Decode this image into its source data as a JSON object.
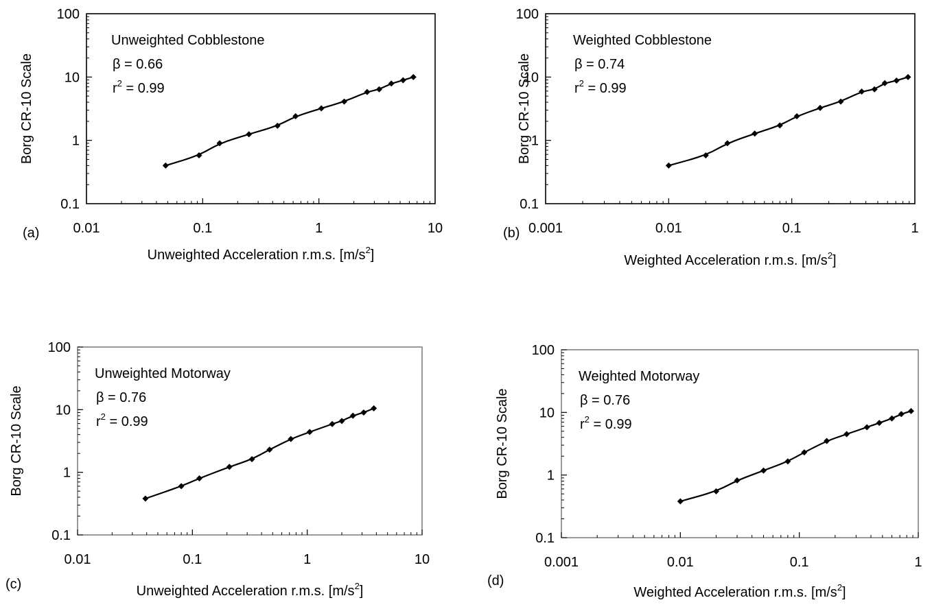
{
  "chart_data": [
    {
      "type": "scatter",
      "panel_label": "(a)",
      "title": "Unweighted Cobblestone",
      "annotations": [
        "β = 0.66",
        "r",
        "2",
        " = 0.99"
      ],
      "xlabel": "Unweighted Acceleration r.m.s. [m/s",
      "xlabel_sup": "2",
      "xlabel_end": "]",
      "ylabel": "Borg CR-10 Scale",
      "x_scale": "log",
      "y_scale": "log",
      "xlim": [
        0.01,
        10
      ],
      "ylim": [
        0.1,
        100
      ],
      "x_ticks": [
        "0.01",
        "0.1",
        "1",
        "10"
      ],
      "y_ticks": [
        "0.1",
        "1",
        "10",
        "100"
      ],
      "frame": "black",
      "grid": false,
      "legend": "none",
      "series": [
        {
          "x": [
            0.048,
            0.093,
            0.14,
            0.25,
            0.44,
            0.63,
            1.05,
            1.65,
            2.6,
            3.3,
            4.2,
            5.3,
            6.5
          ],
          "y": [
            0.4,
            0.58,
            0.9,
            1.25,
            1.7,
            2.4,
            3.2,
            4.1,
            5.8,
            6.4,
            7.9,
            8.9,
            10.0
          ],
          "fit_beta": 0.66
        }
      ]
    },
    {
      "type": "scatter",
      "panel_label": "(b)",
      "title": "Weighted Cobblestone",
      "annotations": [
        "β = 0.74",
        "r",
        "2",
        " = 0.99"
      ],
      "xlabel": "Weighted Acceleration r.m.s. [m/s",
      "xlabel_sup": "2",
      "xlabel_end": "]",
      "ylabel": "Borg CR-10 Scale",
      "x_scale": "log",
      "y_scale": "log",
      "xlim": [
        0.001,
        1
      ],
      "ylim": [
        0.1,
        100
      ],
      "x_ticks": [
        "0.001",
        "0.01",
        "0.1",
        "1"
      ],
      "y_ticks": [
        "0.1",
        "1",
        "10",
        "100"
      ],
      "frame": "black",
      "grid": false,
      "legend": "none",
      "series": [
        {
          "x": [
            0.01,
            0.02,
            0.03,
            0.05,
            0.08,
            0.11,
            0.17,
            0.25,
            0.37,
            0.47,
            0.57,
            0.71,
            0.88
          ],
          "y": [
            0.4,
            0.58,
            0.9,
            1.28,
            1.72,
            2.4,
            3.25,
            4.1,
            5.9,
            6.4,
            8.0,
            8.8,
            10.0
          ],
          "fit_beta": 0.74
        }
      ]
    },
    {
      "type": "scatter",
      "panel_label": "(c)",
      "title": "Unweighted Motorway",
      "annotations": [
        "β = 0.76",
        "r",
        "2",
        " = 0.99"
      ],
      "xlabel": "Unweighted Acceleration r.m.s. [m/s",
      "xlabel_sup": "2",
      "xlabel_end": "]",
      "ylabel": "Borg CR-10 Scale",
      "x_scale": "log",
      "y_scale": "log",
      "xlim": [
        0.01,
        10
      ],
      "ylim": [
        0.1,
        100
      ],
      "x_ticks": [
        "0.01",
        "0.1",
        "1",
        "10"
      ],
      "y_ticks": [
        "0.1",
        "1",
        "10",
        "100"
      ],
      "frame": "gray",
      "grid": false,
      "legend": "none",
      "series": [
        {
          "x": [
            0.039,
            0.08,
            0.115,
            0.21,
            0.33,
            0.47,
            0.72,
            1.05,
            1.65,
            2.0,
            2.5,
            3.1,
            3.8
          ],
          "y": [
            0.38,
            0.6,
            0.8,
            1.22,
            1.62,
            2.3,
            3.4,
            4.4,
            5.9,
            6.6,
            8.0,
            9.0,
            10.5
          ],
          "fit_beta": 0.76
        }
      ]
    },
    {
      "type": "scatter",
      "panel_label": "(d)",
      "title": "Weighted Motorway",
      "annotations": [
        "β = 0.76",
        "r",
        "2",
        " = 0.99"
      ],
      "xlabel": "Weighted Acceleration r.m.s. [m/s",
      "xlabel_sup": "2",
      "xlabel_end": "]",
      "ylabel": "Borg CR-10 Scale",
      "x_scale": "log",
      "y_scale": "log",
      "xlim": [
        0.001,
        1
      ],
      "ylim": [
        0.1,
        100
      ],
      "x_ticks": [
        "0.001",
        "0.01",
        "0.1",
        "1"
      ],
      "y_ticks": [
        "0.1",
        "1",
        "10",
        "100"
      ],
      "frame": "gray",
      "grid": false,
      "legend": "none",
      "series": [
        {
          "x": [
            0.01,
            0.02,
            0.03,
            0.05,
            0.08,
            0.11,
            0.17,
            0.25,
            0.37,
            0.47,
            0.6,
            0.72,
            0.87
          ],
          "y": [
            0.38,
            0.55,
            0.82,
            1.18,
            1.65,
            2.3,
            3.5,
            4.5,
            5.8,
            6.8,
            8.0,
            9.4,
            10.5
          ],
          "fit_beta": 0.76
        }
      ]
    }
  ]
}
